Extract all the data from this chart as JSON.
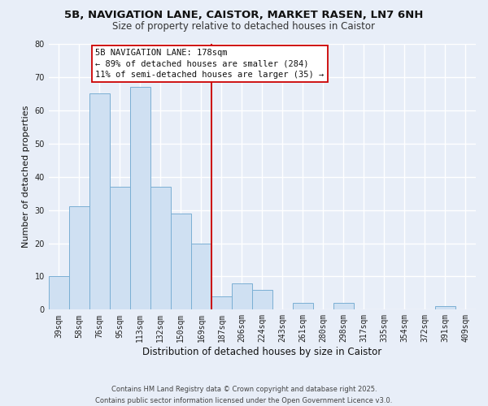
{
  "title": "5B, NAVIGATION LANE, CAISTOR, MARKET RASEN, LN7 6NH",
  "subtitle": "Size of property relative to detached houses in Caistor",
  "xlabel": "Distribution of detached houses by size in Caistor",
  "ylabel": "Number of detached properties",
  "bar_labels": [
    "39sqm",
    "58sqm",
    "76sqm",
    "95sqm",
    "113sqm",
    "132sqm",
    "150sqm",
    "169sqm",
    "187sqm",
    "206sqm",
    "224sqm",
    "243sqm",
    "261sqm",
    "280sqm",
    "298sqm",
    "317sqm",
    "335sqm",
    "354sqm",
    "372sqm",
    "391sqm",
    "409sqm"
  ],
  "bar_values": [
    10,
    31,
    65,
    37,
    67,
    37,
    29,
    20,
    4,
    8,
    6,
    0,
    2,
    0,
    2,
    0,
    0,
    0,
    0,
    1,
    0
  ],
  "bar_color": "#cfe0f2",
  "bar_edge_color": "#7aafd4",
  "vline_x_index": 8,
  "vline_color": "#cc0000",
  "annotation_title": "5B NAVIGATION LANE: 178sqm",
  "annotation_line1": "← 89% of detached houses are smaller (284)",
  "annotation_line2": "11% of semi-detached houses are larger (35) →",
  "annotation_box_facecolor": "#ffffff",
  "annotation_box_edgecolor": "#cc0000",
  "ylim": [
    0,
    80
  ],
  "yticks": [
    0,
    10,
    20,
    30,
    40,
    50,
    60,
    70,
    80
  ],
  "footer_line1": "Contains HM Land Registry data © Crown copyright and database right 2025.",
  "footer_line2": "Contains public sector information licensed under the Open Government Licence v3.0.",
  "background_color": "#e8eef8",
  "plot_bg_color": "#e8eef8",
  "grid_color": "#ffffff",
  "title_fontsize": 9.5,
  "subtitle_fontsize": 8.5,
  "xlabel_fontsize": 8.5,
  "ylabel_fontsize": 8.0,
  "tick_fontsize": 7.0,
  "annotation_fontsize": 7.5,
  "footer_fontsize": 6.0
}
